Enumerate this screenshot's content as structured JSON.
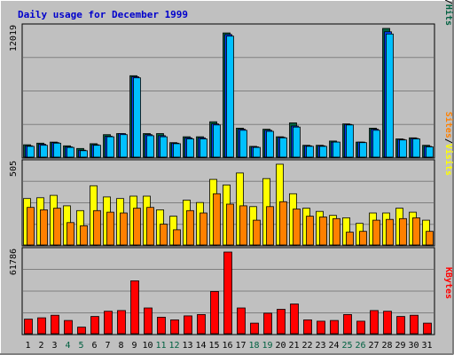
{
  "title": "Daily usage for December 1999",
  "colors": {
    "background": "#c0c0c0",
    "plot": "#c0c0c0",
    "title": "#0000cc",
    "grid": "#808080",
    "hits": "#006040",
    "files": "#0040ff",
    "pages": "#00c0ff",
    "visits": "#ffff00",
    "sites": "#ff8000",
    "kbytes": "#ff0000",
    "weekend_label": "#006040",
    "day_label": "#000000"
  },
  "chart_data": [
    {
      "type": "bar",
      "panel": "top",
      "ymax_label": "12019",
      "ylim": [
        0,
        12019
      ],
      "categories": [
        "1",
        "2",
        "3",
        "4",
        "5",
        "6",
        "7",
        "8",
        "9",
        "10",
        "11",
        "12",
        "13",
        "14",
        "15",
        "16",
        "17",
        "18",
        "19",
        "20",
        "21",
        "22",
        "23",
        "24",
        "25",
        "26",
        "27",
        "28",
        "29",
        "30",
        "31"
      ],
      "weekend_days": [
        "4",
        "5",
        "11",
        "12",
        "18",
        "19",
        "25",
        "26"
      ],
      "legend": [
        {
          "text": "Pages",
          "color": "#00c0ff"
        },
        {
          "text": "/",
          "color": "#000000"
        },
        {
          "text": "Files",
          "color": "#0040ff"
        },
        {
          "text": "/",
          "color": "#000000"
        },
        {
          "text": "Hits",
          "color": "#006040"
        }
      ],
      "series": [
        {
          "name": "Hits",
          "values": [
            1150,
            1300,
            1400,
            1050,
            800,
            1250,
            2100,
            2200,
            7600,
            2200,
            2200,
            1350,
            1900,
            1900,
            3300,
            11600,
            2700,
            1000,
            2600,
            1900,
            3200,
            1100,
            1100,
            1500,
            3100,
            1400,
            2700,
            12019,
            1700,
            1800,
            1100
          ]
        },
        {
          "name": "Files",
          "values": [
            1050,
            1200,
            1350,
            950,
            650,
            1150,
            1950,
            2200,
            7500,
            2100,
            2000,
            1300,
            1800,
            1800,
            3100,
            11450,
            2600,
            950,
            2500,
            1850,
            2900,
            1050,
            1050,
            1400,
            3050,
            1400,
            2600,
            11700,
            1650,
            1750,
            1000
          ]
        },
        {
          "name": "Pages",
          "values": [
            1000,
            1100,
            1300,
            900,
            600,
            1100,
            1900,
            2100,
            7400,
            2000,
            1900,
            1250,
            1700,
            1700,
            3000,
            11300,
            2500,
            900,
            2400,
            1800,
            2800,
            1000,
            1000,
            1400,
            3000,
            1350,
            2500,
            11500,
            1600,
            1700,
            950
          ]
        }
      ]
    },
    {
      "type": "bar",
      "panel": "middle",
      "ymax_label": "505",
      "ylim": [
        0,
        505
      ],
      "categories": [
        "1",
        "2",
        "3",
        "4",
        "5",
        "6",
        "7",
        "8",
        "9",
        "10",
        "11",
        "12",
        "13",
        "14",
        "15",
        "16",
        "17",
        "18",
        "19",
        "20",
        "21",
        "22",
        "23",
        "24",
        "25",
        "26",
        "27",
        "28",
        "29",
        "30",
        "31"
      ],
      "legend": [
        {
          "text": "Sites",
          "color": "#ff8000"
        },
        {
          "text": "/",
          "color": "#000000"
        },
        {
          "text": "Visits",
          "color": "#ffff00"
        }
      ],
      "series": [
        {
          "name": "Visits",
          "values": [
            290,
            295,
            310,
            245,
            215,
            370,
            300,
            290,
            305,
            305,
            220,
            180,
            280,
            265,
            410,
            375,
            450,
            240,
            415,
            515,
            320,
            230,
            210,
            185,
            170,
            135,
            200,
            200,
            230,
            205,
            155
          ]
        },
        {
          "name": "Sites",
          "values": [
            235,
            220,
            230,
            140,
            120,
            215,
            205,
            200,
            230,
            235,
            130,
            95,
            215,
            200,
            320,
            255,
            245,
            155,
            240,
            270,
            225,
            180,
            175,
            165,
            80,
            85,
            155,
            160,
            165,
            170,
            85
          ]
        }
      ]
    },
    {
      "type": "bar",
      "panel": "bottom",
      "ymax_label": "61786",
      "ylim": [
        0,
        61786
      ],
      "categories": [
        "1",
        "2",
        "3",
        "4",
        "5",
        "6",
        "7",
        "8",
        "9",
        "10",
        "11",
        "12",
        "13",
        "14",
        "15",
        "16",
        "17",
        "18",
        "19",
        "20",
        "21",
        "22",
        "23",
        "24",
        "25",
        "26",
        "27",
        "28",
        "29",
        "30",
        "31"
      ],
      "legend": [
        {
          "text": "KBytes",
          "color": "#ff0000"
        }
      ],
      "series": [
        {
          "name": "KBytes",
          "values": [
            11000,
            12000,
            14000,
            10000,
            5000,
            13000,
            17000,
            17500,
            40000,
            19500,
            12500,
            10500,
            13500,
            14500,
            32000,
            62000,
            19500,
            8000,
            15500,
            18500,
            22500,
            10500,
            9500,
            10000,
            14500,
            9500,
            17500,
            17000,
            13000,
            14000,
            8000
          ]
        }
      ]
    }
  ]
}
